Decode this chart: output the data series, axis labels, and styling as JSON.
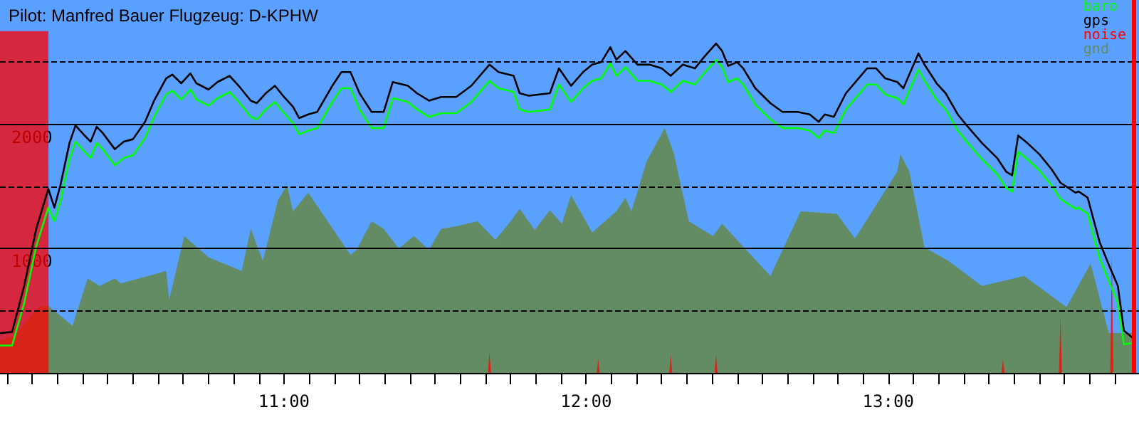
{
  "chart_data": {
    "type": "line",
    "title": "Pilot: Manfred Bauer Flugzeug: D-KPHW",
    "x": [
      10.06,
      10.1,
      10.14,
      10.18,
      10.22,
      10.24,
      10.26,
      10.29,
      10.31,
      10.34,
      10.36,
      10.38,
      10.4,
      10.44,
      10.47,
      10.5,
      10.54,
      10.57,
      10.61,
      10.63,
      10.66,
      10.69,
      10.71,
      10.75,
      10.78,
      10.82,
      10.85,
      10.89,
      10.91,
      10.94,
      10.97,
      11.0,
      11.03,
      11.05,
      11.08,
      11.11,
      11.16,
      11.19,
      11.22,
      11.25,
      11.29,
      11.33,
      11.36,
      11.41,
      11.44,
      11.48,
      11.52,
      11.57,
      11.62,
      11.68,
      11.71,
      11.76,
      11.78,
      11.81,
      11.88,
      11.91,
      11.95,
      11.99,
      12.02,
      12.05,
      12.08,
      12.1,
      12.13,
      12.17,
      12.21,
      12.25,
      12.28,
      12.32,
      12.36,
      12.39,
      12.43,
      12.45,
      12.47,
      12.5,
      12.52,
      12.56,
      12.61,
      12.65,
      12.7,
      12.74,
      12.77,
      12.79,
      12.82,
      12.86,
      12.93,
      12.96,
      12.99,
      13.03,
      13.05,
      13.1,
      13.12,
      13.16,
      13.19,
      13.23,
      13.26,
      13.31,
      13.36,
      13.39,
      13.41,
      13.43,
      13.46,
      13.5,
      13.54,
      13.57,
      13.62,
      13.63,
      13.66,
      13.7,
      13.73,
      13.76,
      13.78,
      13.81
    ],
    "series": [
      {
        "name": "baro",
        "color": "#00ff00",
        "values": [
          220,
          220,
          560,
          1020,
          1330,
          1220,
          1380,
          1720,
          1860,
          1780,
          1730,
          1850,
          1800,
          1670,
          1730,
          1750,
          1890,
          2060,
          2240,
          2270,
          2200,
          2280,
          2200,
          2150,
          2210,
          2260,
          2180,
          2060,
          2040,
          2120,
          2180,
          2090,
          2010,
          1920,
          1950,
          1970,
          2180,
          2290,
          2290,
          2120,
          1970,
          1970,
          2210,
          2180,
          2120,
          2060,
          2090,
          2090,
          2180,
          2350,
          2290,
          2260,
          2120,
          2100,
          2120,
          2320,
          2180,
          2290,
          2350,
          2370,
          2490,
          2390,
          2460,
          2350,
          2350,
          2320,
          2260,
          2350,
          2320,
          2410,
          2520,
          2460,
          2340,
          2370,
          2320,
          2160,
          2040,
          1970,
          1970,
          1950,
          1890,
          1950,
          1930,
          2120,
          2320,
          2320,
          2240,
          2210,
          2160,
          2440,
          2350,
          2200,
          2120,
          1950,
          1860,
          1720,
          1600,
          1490,
          1460,
          1780,
          1720,
          1630,
          1510,
          1400,
          1320,
          1330,
          1280,
          920,
          740,
          570,
          230,
          240
        ]
      },
      {
        "name": "gps",
        "color": "#000000",
        "values": [
          320,
          330,
          700,
          1160,
          1480,
          1330,
          1510,
          1850,
          1990,
          1910,
          1860,
          1980,
          1930,
          1800,
          1860,
          1880,
          2020,
          2190,
          2370,
          2400,
          2330,
          2410,
          2330,
          2280,
          2340,
          2390,
          2310,
          2190,
          2170,
          2250,
          2310,
          2220,
          2140,
          2050,
          2080,
          2100,
          2310,
          2420,
          2420,
          2250,
          2100,
          2100,
          2340,
          2310,
          2250,
          2190,
          2220,
          2220,
          2310,
          2480,
          2420,
          2390,
          2250,
          2230,
          2250,
          2450,
          2310,
          2420,
          2480,
          2500,
          2620,
          2520,
          2590,
          2480,
          2480,
          2450,
          2390,
          2480,
          2450,
          2540,
          2650,
          2590,
          2470,
          2500,
          2450,
          2290,
          2170,
          2100,
          2100,
          2080,
          2020,
          2080,
          2060,
          2250,
          2450,
          2450,
          2370,
          2340,
          2290,
          2570,
          2480,
          2330,
          2250,
          2080,
          1990,
          1850,
          1730,
          1620,
          1590,
          1910,
          1850,
          1760,
          1640,
          1530,
          1450,
          1460,
          1410,
          1050,
          870,
          700,
          340,
          280
        ]
      },
      {
        "name": "noise",
        "type": "area",
        "color": "#ff0000",
        "x": [
          10.06,
          10.22,
          10.221,
          11.675,
          11.68,
          11.685,
          12.035,
          12.04,
          12.045,
          12.275,
          12.28,
          12.285,
          12.425,
          12.43,
          12.435,
          13.375,
          13.38,
          13.385,
          13.565,
          13.57,
          13.575,
          13.735,
          13.74,
          13.745
        ],
        "values": [
          2750,
          2750,
          0,
          0,
          170,
          0,
          0,
          110,
          0,
          0,
          150,
          0,
          0,
          150,
          0,
          0,
          110,
          0,
          0,
          460,
          0,
          0,
          970,
          0
        ]
      },
      {
        "name": "gnd",
        "type": "area",
        "color": "#648c64",
        "x": [
          10.06,
          10.11,
          10.16,
          10.19,
          10.22,
          10.3,
          10.35,
          10.39,
          10.44,
          10.46,
          10.61,
          10.62,
          10.67,
          10.75,
          10.86,
          10.89,
          10.93,
          10.98,
          11.01,
          11.03,
          11.08,
          11.22,
          11.24,
          11.29,
          11.33,
          11.38,
          11.43,
          11.48,
          11.52,
          11.57,
          11.64,
          11.7,
          11.75,
          11.78,
          11.83,
          11.88,
          11.92,
          11.95,
          12.02,
          12.1,
          12.13,
          12.15,
          12.2,
          12.26,
          12.29,
          12.34,
          12.42,
          12.45,
          12.61,
          12.71,
          12.83,
          12.89,
          13.03,
          13.04,
          13.07,
          13.12,
          13.2,
          13.31,
          13.45,
          13.59,
          13.67,
          13.7,
          13.73,
          13.81
        ],
        "values": [
          260,
          300,
          450,
          530,
          540,
          380,
          760,
          700,
          760,
          720,
          820,
          590,
          1100,
          930,
          820,
          1160,
          900,
          1390,
          1510,
          1300,
          1450,
          950,
          990,
          1220,
          1160,
          1000,
          1100,
          990,
          1160,
          1180,
          1220,
          1070,
          1220,
          1320,
          1150,
          1310,
          1200,
          1430,
          1130,
          1300,
          1410,
          1300,
          1700,
          1970,
          1770,
          1220,
          1100,
          1200,
          780,
          1300,
          1280,
          1080,
          1620,
          1760,
          1620,
          1010,
          900,
          700,
          780,
          530,
          880,
          600,
          320,
          320
        ]
      }
    ],
    "xlim": [
      10.06,
      13.83
    ],
    "xticks": [
      {
        "value": 10.0833,
        "label": null
      },
      {
        "value": 10.1667,
        "label": null
      },
      {
        "value": 10.25,
        "label": null
      },
      {
        "value": 10.3333,
        "label": null
      },
      {
        "value": 10.4167,
        "label": null
      },
      {
        "value": 10.5,
        "label": null
      },
      {
        "value": 10.5833,
        "label": null
      },
      {
        "value": 10.6667,
        "label": null
      },
      {
        "value": 10.75,
        "label": null
      },
      {
        "value": 10.8333,
        "label": null
      },
      {
        "value": 10.9167,
        "label": null
      },
      {
        "value": 11,
        "label": "11:00"
      },
      {
        "value": 11.0833,
        "label": null
      },
      {
        "value": 11.1667,
        "label": null
      },
      {
        "value": 11.25,
        "label": null
      },
      {
        "value": 11.3333,
        "label": null
      },
      {
        "value": 11.4167,
        "label": null
      },
      {
        "value": 11.5,
        "label": null
      },
      {
        "value": 11.5833,
        "label": null
      },
      {
        "value": 11.6667,
        "label": null
      },
      {
        "value": 11.75,
        "label": null
      },
      {
        "value": 11.8333,
        "label": null
      },
      {
        "value": 11.9167,
        "label": null
      },
      {
        "value": 12,
        "label": "12:00"
      },
      {
        "value": 12.0833,
        "label": null
      },
      {
        "value": 12.1667,
        "label": null
      },
      {
        "value": 12.25,
        "label": null
      },
      {
        "value": 12.3333,
        "label": null
      },
      {
        "value": 12.4167,
        "label": null
      },
      {
        "value": 12.5,
        "label": null
      },
      {
        "value": 12.5833,
        "label": null
      },
      {
        "value": 12.6667,
        "label": null
      },
      {
        "value": 12.75,
        "label": null
      },
      {
        "value": 12.8333,
        "label": null
      },
      {
        "value": 12.9167,
        "label": null
      },
      {
        "value": 13,
        "label": "13:00"
      },
      {
        "value": 13.0833,
        "label": null
      },
      {
        "value": 13.1667,
        "label": null
      },
      {
        "value": 13.25,
        "label": null
      },
      {
        "value": 13.3333,
        "label": null
      },
      {
        "value": 13.4167,
        "label": null
      },
      {
        "value": 13.5,
        "label": null
      },
      {
        "value": 13.5833,
        "label": null
      },
      {
        "value": 13.6667,
        "label": null
      },
      {
        "value": 13.75,
        "label": null
      }
    ],
    "ylim": [
      0,
      3000
    ],
    "yticks": [
      {
        "value": 500,
        "label": null
      },
      1000,
      {
        "value": 1500,
        "label": null
      },
      2000,
      {
        "value": 2500,
        "label": null
      }
    ],
    "grid": "y",
    "legend": "top right",
    "marker": "none",
    "line_style": "solid",
    "ref_lines": [
      {
        "axis": "x",
        "value": 13.81,
        "color": "#ff0000"
      }
    ]
  }
}
